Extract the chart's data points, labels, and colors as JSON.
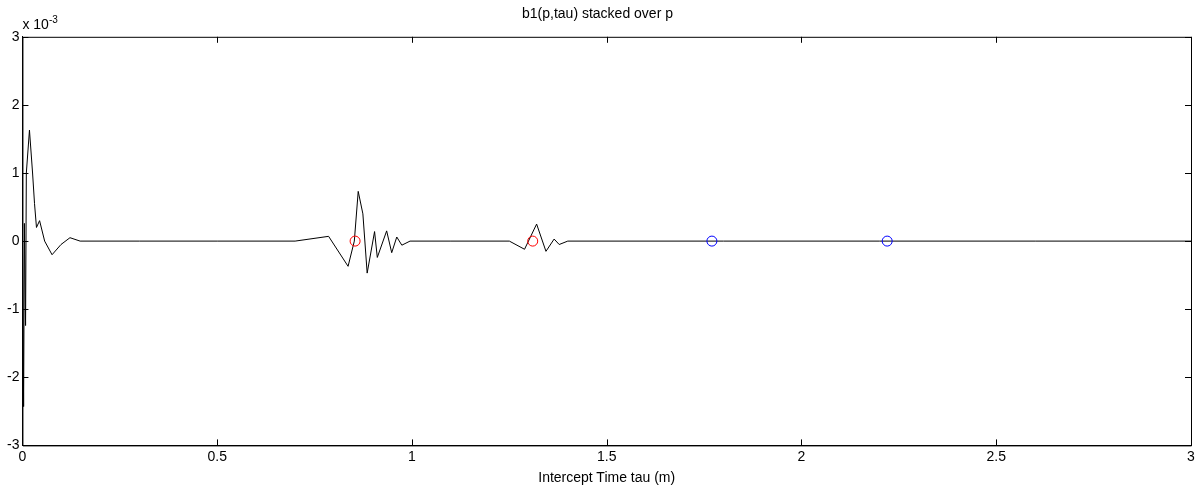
{
  "chart_data": {
    "type": "line",
    "title": "b1(p,tau) stacked over p",
    "xlabel": "Intercept Time tau (m)",
    "annotations": [
      "x 10$^{-3}$"
    ],
    "xlim": [
      0,
      3
    ],
    "xticks": [
      0,
      0.5,
      1,
      1.5,
      2,
      2.5,
      3
    ],
    "ylim": [
      -3,
      3
    ],
    "yticks": [
      -3,
      -2,
      -1,
      0,
      1,
      2,
      3
    ],
    "grid": false,
    "legend": false,
    "series": [
      {
        "color": "#000000",
        "marker": "none",
        "x": [
          0,
          0.003,
          0.005,
          0.008,
          0.01,
          0.018,
          0.026,
          0.031,
          0.036,
          0.044,
          0.057,
          0.076,
          0.099,
          0.122,
          0.148,
          0.3,
          0.5,
          0.7,
          0.786,
          0.836,
          0.852,
          0.862,
          0.874,
          0.885,
          0.904,
          0.911,
          0.935,
          0.948,
          0.961,
          0.974,
          0.995,
          1.1,
          1.25,
          1.289,
          1.32,
          1.344,
          1.365,
          1.378,
          1.4,
          1.8,
          2.2,
          2.6,
          3
        ],
        "values": [
          0,
          -2.43,
          0.26,
          -1.24,
          1.0,
          1.63,
          1.0,
          0.55,
          0.2,
          0.3,
          0,
          -0.2,
          -0.05,
          0.05,
          0,
          0,
          0,
          0,
          0.07,
          -0.37,
          0,
          0.73,
          0.4,
          -0.47,
          0.14,
          -0.24,
          0.15,
          -0.17,
          0.06,
          -0.06,
          0,
          0,
          0,
          -0.12,
          0.25,
          -0.15,
          0.03,
          -0.05,
          0,
          0,
          0,
          0,
          0
        ]
      },
      {
        "type": "scatter",
        "color": "#ff0000",
        "marker": "circle",
        "x": [
          0.854,
          1.31
        ],
        "values": [
          0,
          0
        ]
      },
      {
        "type": "scatter",
        "color": "#0000ff",
        "marker": "circle",
        "x": [
          1.77,
          2.22
        ],
        "values": [
          0,
          0
        ]
      }
    ]
  }
}
